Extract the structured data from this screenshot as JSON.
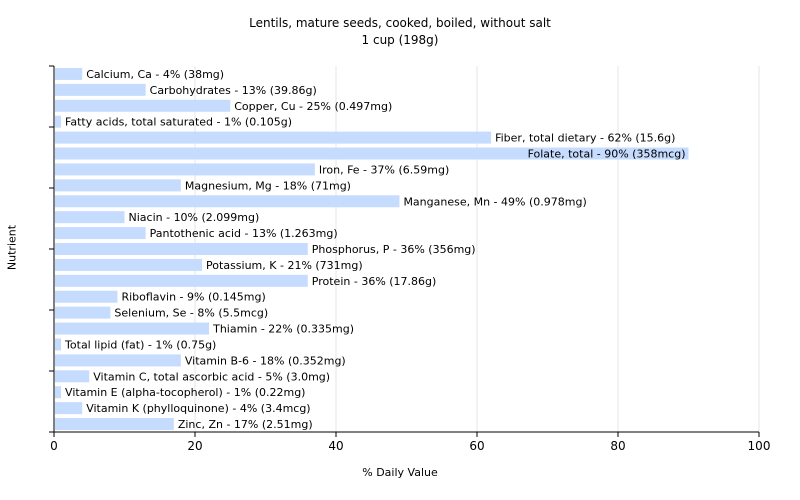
{
  "chart": {
    "title": "Lentils, mature seeds, cooked, boiled, without salt",
    "subtitle": "1 cup (198g)",
    "xlabel": "% Daily Value",
    "ylabel": "Nutrient"
  },
  "chart_data": {
    "type": "bar",
    "orientation": "horizontal",
    "title": "Lentils, mature seeds, cooked, boiled, without salt",
    "subtitle": "1 cup (198g)",
    "xlabel": "% Daily Value",
    "ylabel": "Nutrient",
    "xlim": [
      0,
      100
    ],
    "xticks": [
      0,
      20,
      40,
      60,
      80,
      100
    ],
    "grid": "vertical",
    "bar_color": "#c6dcff",
    "categories": [
      "Calcium, Ca",
      "Carbohydrates",
      "Copper, Cu",
      "Fatty acids, total saturated",
      "Fiber, total dietary",
      "Folate, total",
      "Iron, Fe",
      "Magnesium, Mg",
      "Manganese, Mn",
      "Niacin",
      "Pantothenic acid",
      "Phosphorus, P",
      "Potassium, K",
      "Protein",
      "Riboflavin",
      "Selenium, Se",
      "Thiamin",
      "Total lipid (fat)",
      "Vitamin B-6",
      "Vitamin C, total ascorbic acid",
      "Vitamin E (alpha-tocopherol)",
      "Vitamin K (phylloquinone)",
      "Zinc, Zn"
    ],
    "values": [
      4,
      13,
      25,
      1,
      62,
      90,
      37,
      18,
      49,
      10,
      13,
      36,
      21,
      36,
      9,
      8,
      22,
      1,
      18,
      5,
      1,
      4,
      17
    ],
    "labels": [
      "Calcium, Ca - 4% (38mg)",
      "Carbohydrates - 13% (39.86g)",
      "Copper, Cu - 25% (0.497mg)",
      "Fatty acids, total saturated - 1% (0.105g)",
      "Fiber, total dietary - 62% (15.6g)",
      "Folate, total - 90% (358mcg)",
      "Iron, Fe - 37% (6.59mg)",
      "Magnesium, Mg - 18% (71mg)",
      "Manganese, Mn - 49% (0.978mg)",
      "Niacin - 10% (2.099mg)",
      "Pantothenic acid - 13% (1.263mg)",
      "Phosphorus, P - 36% (356mg)",
      "Potassium, K - 21% (731mg)",
      "Protein - 36% (17.86g)",
      "Riboflavin - 9% (0.145mg)",
      "Selenium, Se - 8% (5.5mcg)",
      "Thiamin - 22% (0.335mg)",
      "Total lipid (fat) - 1% (0.75g)",
      "Vitamin B-6 - 18% (0.352mg)",
      "Vitamin C, total ascorbic acid - 5% (3.0mg)",
      "Vitamin E (alpha-tocopherol) - 1% (0.22mg)",
      "Vitamin K (phylloquinone) - 4% (3.4mcg)",
      "Zinc, Zn - 17% (2.51mg)"
    ]
  }
}
